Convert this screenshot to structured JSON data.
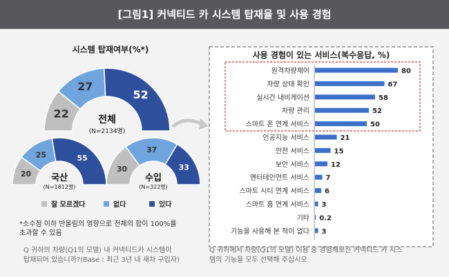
{
  "header": {
    "title": "[그림1] 커넥티드 카 시스템 탑재율 및 사용 경험"
  },
  "left": {
    "title": "시스템 탑재여부(%*)",
    "charts": [
      {
        "name": "전체",
        "n": "(N=2134명)",
        "values": [
          22,
          27,
          52
        ]
      },
      {
        "name": "국산",
        "n": "(N=1812명)",
        "values": [
          20,
          25,
          55
        ]
      },
      {
        "name": "수입",
        "n": "(N=322명)",
        "values": [
          30,
          37,
          33
        ]
      }
    ],
    "legend": [
      "잘 모르겠다",
      "없다",
      "있다"
    ],
    "note1": "*소수점 이하 반올림의 영향으로 전체의 합이 100%를",
    "note2": "초과할 수 있음",
    "question1": "Q 귀하의 차량(Q1의 모델) 내 커넥티드카 시스템이",
    "question2": "탑재되어 있습니까?(Base : 최근 3년 내 새차 구입자)"
  },
  "right": {
    "title": "사용 경험이 있는 서비스(복수응답, %)",
    "question1": "Q 귀하께서 차량(Q1의 모델) 이용 중 경험해보신 커넥티드 카 시스",
    "question2": "템의 기능을 모두 선택해 주십시오"
  },
  "colors": {
    "unknown": "#bfbfbf",
    "no": "#6fa4dd",
    "yes": "#2d4f9c",
    "bar": "#3b6fc9",
    "highlight": "#d9302b",
    "header": "#58585a"
  },
  "chart_data": [
    {
      "type": "pie",
      "title": "시스템 탑재여부(%*)",
      "series_labels": [
        "잘 모르겠다",
        "없다",
        "있다"
      ],
      "groups": [
        {
          "name": "전체",
          "n": "(N=2134명)",
          "values": [
            22,
            27,
            52
          ]
        },
        {
          "name": "국산",
          "n": "(N=1812명)",
          "values": [
            20,
            25,
            55
          ]
        },
        {
          "name": "수입",
          "n": "(N=322명)",
          "values": [
            30,
            37,
            33
          ]
        }
      ]
    },
    {
      "type": "bar",
      "title": "사용 경험이 있는 서비스(복수응답, %)",
      "categories": [
        "원격차량제어",
        "차량 상태 확인",
        "실시간 내비게이션",
        "차량 관리",
        "스마트 폰 연계 서비스",
        "인공지능 서비스",
        "안전 서비스",
        "보안 서비스",
        "엔터테인먼트 서비스",
        "스마트 시티 연계 서비스",
        "스마트 홈 연계 서비스",
        "기타",
        "기능을 사용해 본 적이 없다"
      ],
      "values": [
        80,
        67,
        58,
        52,
        50,
        21,
        15,
        12,
        7,
        6,
        3,
        0.2,
        3
      ],
      "highlighted": [
        "원격차량제어",
        "차량 상태 확인",
        "실시간 내비게이션",
        "차량 관리",
        "스마트 폰 연계 서비스"
      ]
    }
  ]
}
